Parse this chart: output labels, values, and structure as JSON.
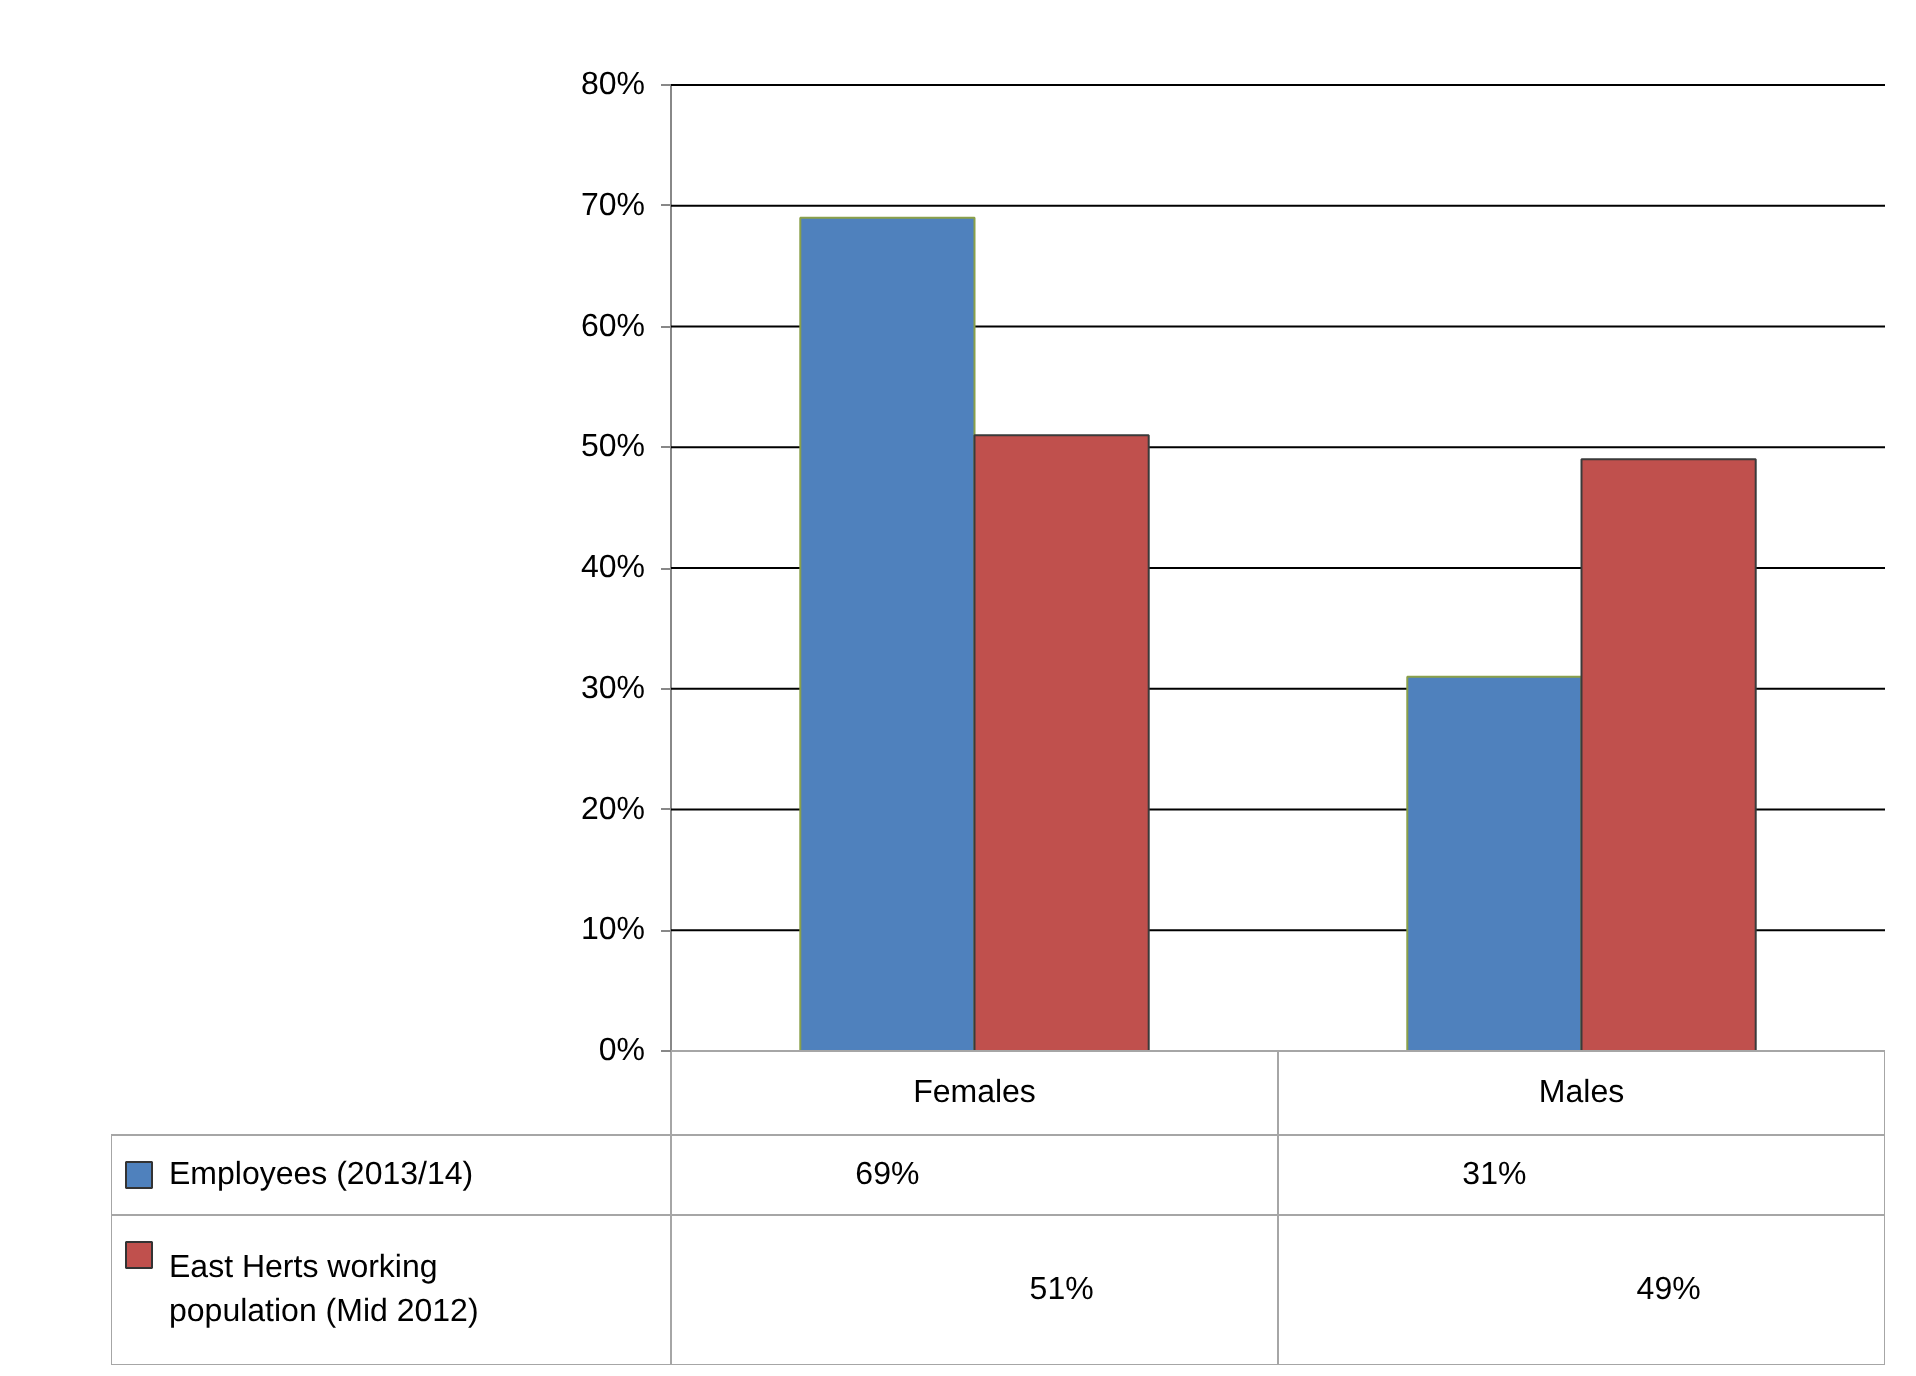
{
  "chart_data": {
    "type": "bar",
    "categories": [
      "Females",
      "Males"
    ],
    "series": [
      {
        "name": "Employees (2013/14)",
        "color": "#4f81bd",
        "values": [
          69,
          31
        ],
        "value_labels": [
          "69%",
          "31%"
        ]
      },
      {
        "name": "East Herts working population (Mid 2012)",
        "color": "#c0504d",
        "values": [
          51,
          49
        ],
        "value_labels": [
          "51%",
          "49%"
        ]
      }
    ],
    "ylim": [
      0,
      80
    ],
    "yticks": [
      {
        "value": 0,
        "label": "0%"
      },
      {
        "value": 10,
        "label": "10%"
      },
      {
        "value": 20,
        "label": "20%"
      },
      {
        "value": 30,
        "label": "30%"
      },
      {
        "value": 40,
        "label": "40%"
      },
      {
        "value": 50,
        "label": "50%"
      },
      {
        "value": 60,
        "label": "60%"
      },
      {
        "value": 70,
        "label": "70%"
      },
      {
        "value": 80,
        "label": "80%"
      }
    ],
    "grid": "y",
    "legend": "bottom"
  }
}
